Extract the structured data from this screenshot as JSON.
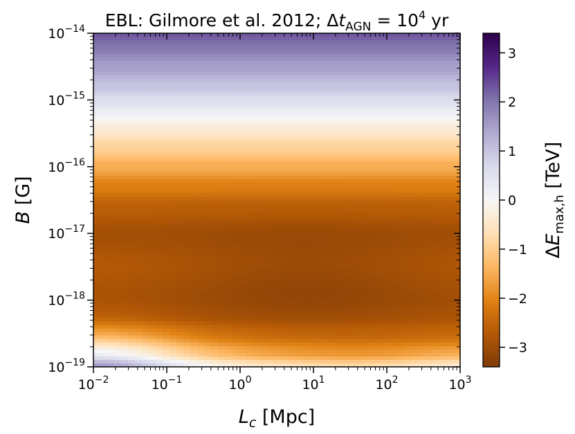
{
  "chart_data": {
    "type": "heatmap",
    "title": {
      "prefix": "EBL: Gilmore et al. 2012; ",
      "delta": "Δ",
      "var": "t",
      "sub": "AGN",
      "eq": " = 10",
      "exp": "4",
      "suffix": " yr"
    },
    "xlabel": {
      "var": "L",
      "sub": "c",
      "rest": " [Mpc]"
    },
    "ylabel": {
      "var": "B",
      "rest": " [G]"
    },
    "x_scale": "log",
    "y_scale": "log",
    "xlim": [
      0.01,
      1000
    ],
    "ylim": [
      1e-19,
      1e-14
    ],
    "x_ticks": [
      {
        "base": "10",
        "exp": "−2"
      },
      {
        "base": "10",
        "exp": "−1"
      },
      {
        "base": "10",
        "exp": "0"
      },
      {
        "base": "10",
        "exp": "1"
      },
      {
        "base": "10",
        "exp": "2"
      },
      {
        "base": "10",
        "exp": "3"
      }
    ],
    "y_ticks": [
      {
        "base": "10",
        "exp": "−19"
      },
      {
        "base": "10",
        "exp": "−18"
      },
      {
        "base": "10",
        "exp": "−17"
      },
      {
        "base": "10",
        "exp": "−16"
      },
      {
        "base": "10",
        "exp": "−15"
      },
      {
        "base": "10",
        "exp": "−14"
      }
    ],
    "colorbar": {
      "label": {
        "delta": "Δ",
        "var": "E",
        "sub": "max,h",
        "rest": " [TeV]"
      },
      "range": [
        -3.4,
        3.4
      ],
      "ticks": [
        "3",
        "2",
        "1",
        "0",
        "−1",
        "−2",
        "−3"
      ],
      "tick_values": [
        3,
        2,
        1,
        0,
        -1,
        -2,
        -3
      ],
      "colormap": "PuOr",
      "colormap_stops": [
        "#7f3b08",
        "#b35806",
        "#e08214",
        "#fdb863",
        "#fee0b6",
        "#f7f7f7",
        "#d8daeb",
        "#b2abd2",
        "#8073ac",
        "#542788",
        "#2d004b"
      ]
    },
    "field_profile": {
      "log_B": [
        -19,
        -18.8,
        -18.5,
        -18.2,
        -18,
        -17.5,
        -17,
        -16.6,
        -16.3,
        -16,
        -15.7,
        -15.4,
        -15.2,
        -15,
        -14.8,
        -14.5,
        -14.2,
        -14
      ],
      "delta_E": [
        -0.9,
        -1.9,
        -2.5,
        -2.8,
        -2.85,
        -2.7,
        -2.9,
        -2.6,
        -2.1,
        -1.5,
        -0.9,
        -0.3,
        0.2,
        0.6,
        1.0,
        1.5,
        2.0,
        2.3
      ]
    }
  }
}
